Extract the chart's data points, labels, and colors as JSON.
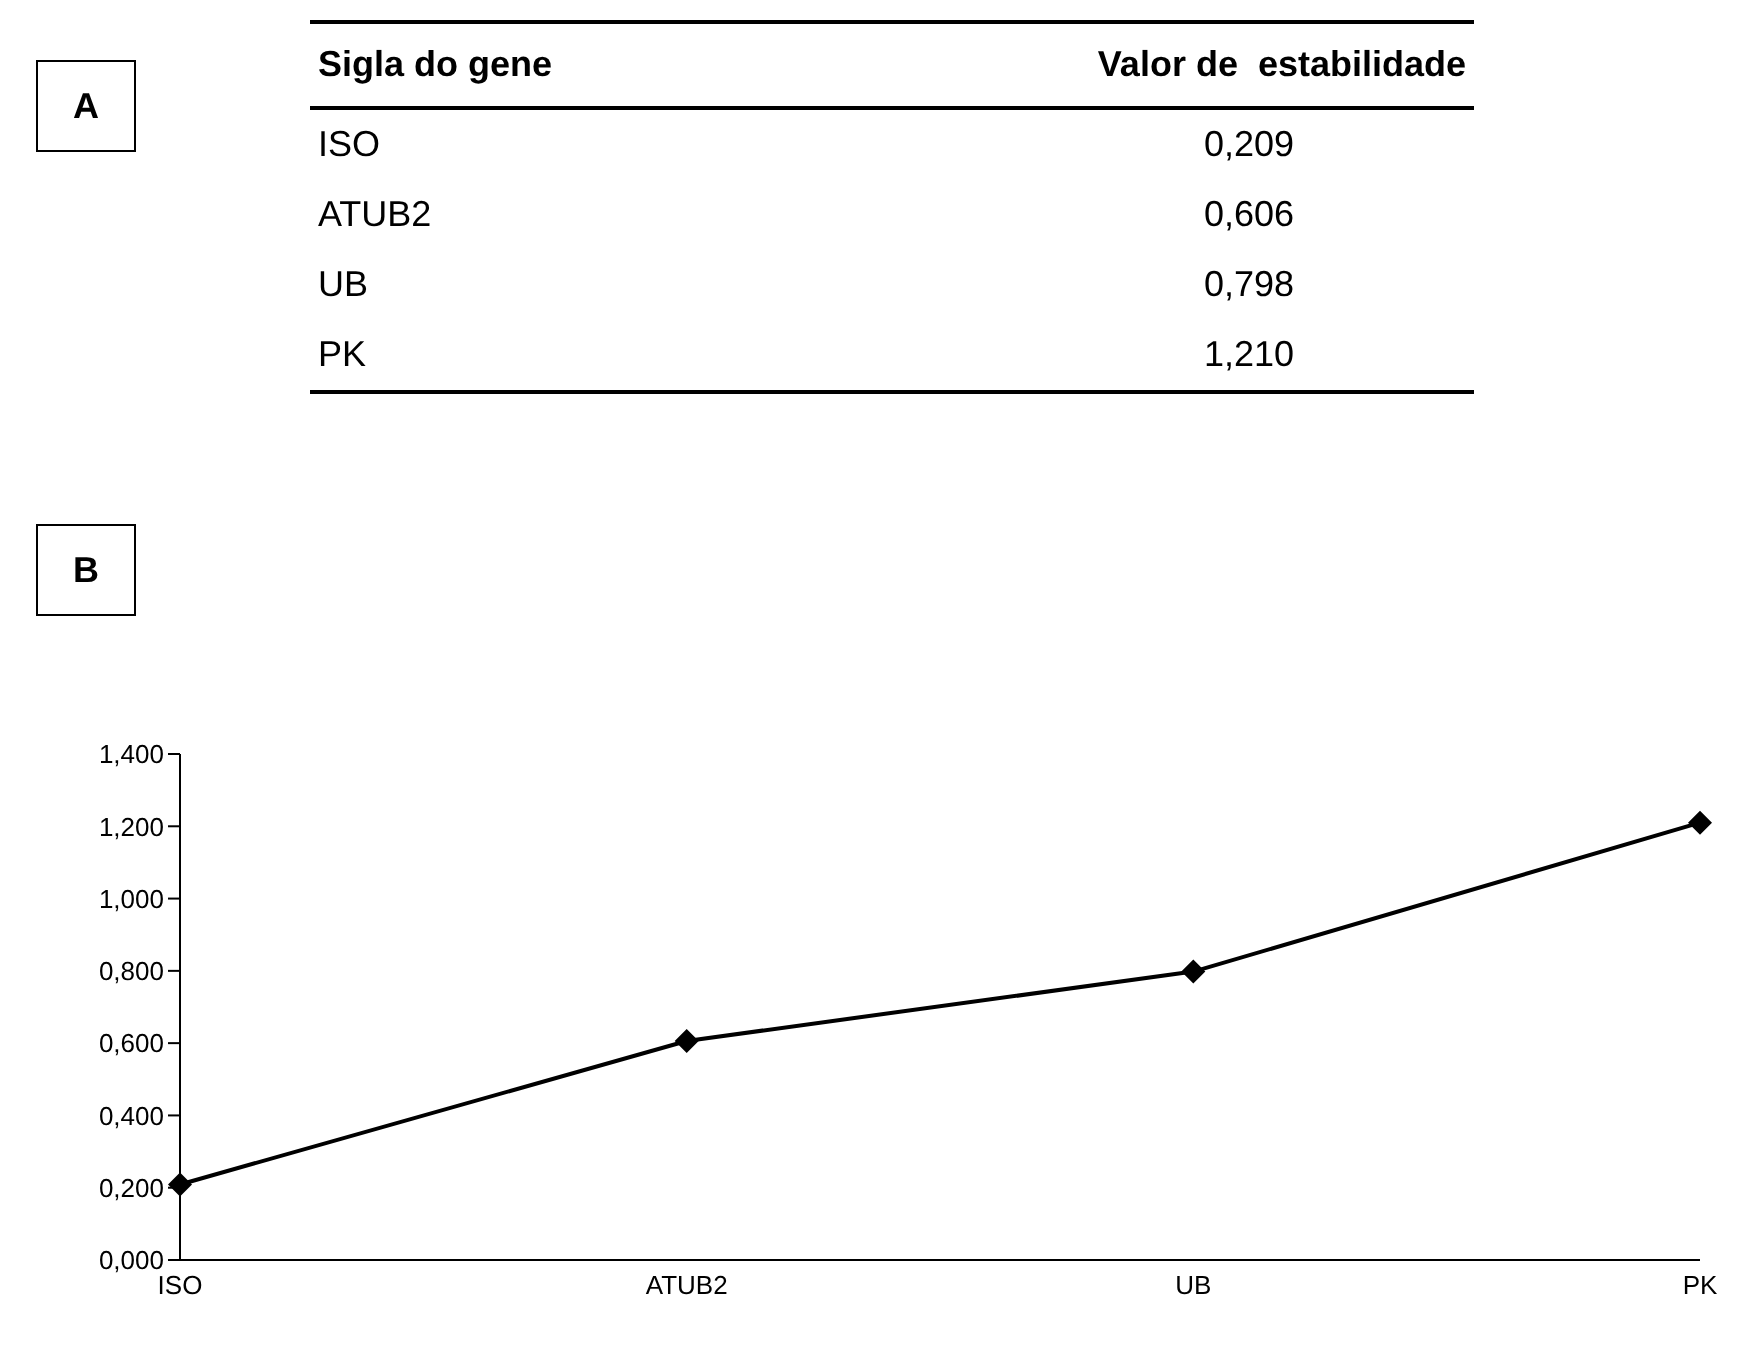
{
  "chart_data": {
    "type": "line",
    "annotations": [
      "A",
      "B",
      "Sigla do gene",
      "Valor de  estabilidade"
    ],
    "categories": [
      "ISO",
      "ATUB2",
      "UB",
      "PK"
    ],
    "series": [
      {
        "color": "#000000",
        "values": [
          0.209,
          0.606,
          0.798,
          1.21
        ]
      }
    ],
    "value_labels": [
      "0,209",
      "0,606",
      "0,798",
      "1,210"
    ],
    "ylim": [
      0,
      1.4
    ],
    "yticks": [
      {
        "value": 0,
        "label": "0,000"
      },
      {
        "value": 0.2,
        "label": "0,200"
      },
      {
        "value": 0.4,
        "label": "0,400"
      },
      {
        "value": 0.6,
        "label": "0,600"
      },
      {
        "value": 0.8,
        "label": "0,800"
      },
      {
        "value": 1,
        "label": "1,000"
      },
      {
        "value": 1.2,
        "label": "1,200"
      },
      {
        "value": 1.4,
        "label": "1,400"
      }
    ],
    "marker": "diamond",
    "line_style": "solid",
    "grid": false,
    "legend": false
  }
}
